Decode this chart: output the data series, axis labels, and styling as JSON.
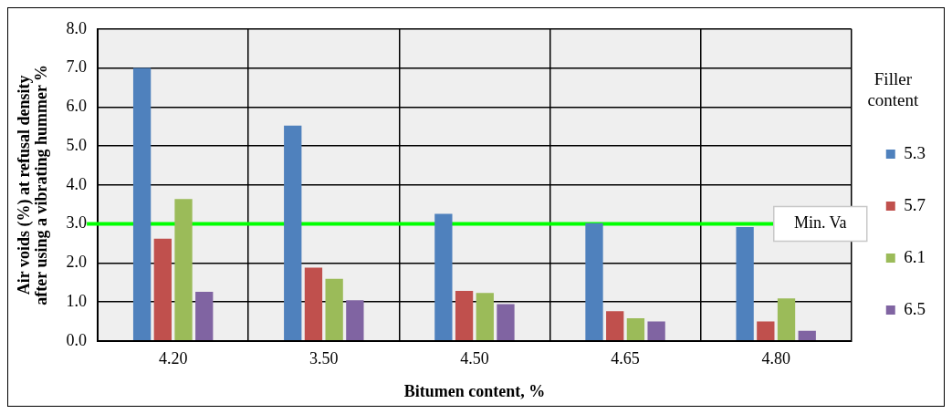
{
  "chart_data": {
    "type": "bar",
    "xlabel": "Bitumen content, %",
    "ylabel": "Air voids (%) at refusal density after using a vibrating hummer %",
    "legend_title": "Filler content",
    "categories": [
      "4.20",
      "3.50",
      "4.50",
      "4.65",
      "4.80"
    ],
    "series": [
      {
        "name": "5.3",
        "color": "#4f81bd",
        "values": [
          7.0,
          5.52,
          3.26,
          3.02,
          2.92
        ]
      },
      {
        "name": "5.7",
        "color": "#c0504d",
        "values": [
          2.62,
          1.88,
          1.28,
          0.76,
          0.5
        ]
      },
      {
        "name": "6.1",
        "color": "#9bbb59",
        "values": [
          3.64,
          1.59,
          1.23,
          0.58,
          1.09
        ]
      },
      {
        "name": "6.5",
        "color": "#8064a2",
        "values": [
          1.26,
          1.04,
          0.94,
          0.5,
          0.26
        ]
      }
    ],
    "ylim": [
      0,
      8
    ],
    "yticks": [
      {
        "value": 0,
        "label": "0.0"
      },
      {
        "value": 1,
        "label": "1.0"
      },
      {
        "value": 2,
        "label": "2.0"
      },
      {
        "value": 3,
        "label": "3.0"
      },
      {
        "value": 4,
        "label": "4.0"
      },
      {
        "value": 5,
        "label": "5.0"
      },
      {
        "value": 6,
        "label": "6.0"
      },
      {
        "value": 7,
        "label": "7.0"
      },
      {
        "value": 8,
        "label": "8.0"
      }
    ],
    "grid": true,
    "legend": "right",
    "ref_lines": [
      {
        "axis": "y",
        "value": 3,
        "label": "Min. Va",
        "color": "#00ff00"
      }
    ]
  }
}
